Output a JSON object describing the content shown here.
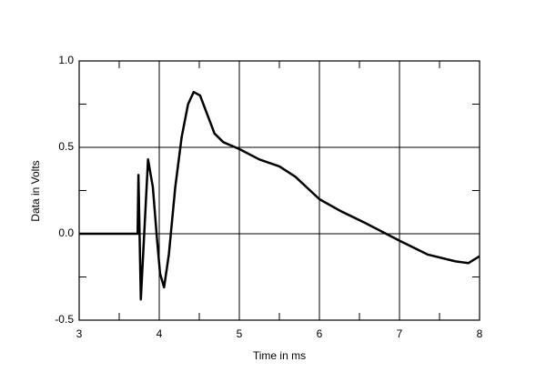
{
  "chart_data": {
    "type": "line",
    "x_label": "Time in ms",
    "y_label": "Data in Volts",
    "x": [
      3.0,
      3.73,
      3.74,
      3.77,
      3.81,
      3.86,
      3.92,
      3.97,
      4.01,
      4.06,
      4.12,
      4.2,
      4.28,
      4.36,
      4.43,
      4.51,
      4.6,
      4.69,
      4.8,
      5.0,
      5.25,
      5.5,
      5.7,
      6.0,
      6.27,
      6.56,
      7.0,
      7.35,
      7.7,
      7.86,
      8.0
    ],
    "values": [
      0.0,
      0.0,
      0.34,
      -0.38,
      -0.02,
      0.43,
      0.27,
      -0.02,
      -0.23,
      -0.31,
      -0.12,
      0.27,
      0.56,
      0.75,
      0.82,
      0.8,
      0.69,
      0.58,
      0.53,
      0.49,
      0.43,
      0.39,
      0.33,
      0.2,
      0.13,
      0.065,
      -0.04,
      -0.12,
      -0.16,
      -0.17,
      -0.13
    ],
    "color": "#000000",
    "xlim": [
      3,
      8
    ],
    "xticks": [
      3,
      4,
      5,
      6,
      7,
      8
    ],
    "xminorticks": [
      3.5,
      4.5,
      5.5,
      6.5,
      7.5
    ],
    "ylim": [
      -0.5,
      1.0
    ],
    "yticks": [
      {
        "value": -0.5,
        "label": "-0.5"
      },
      {
        "value": 0,
        "label": "0.0"
      },
      {
        "value": 0.5,
        "label": "0.5"
      },
      {
        "value": 1.0,
        "label": "1.0"
      }
    ],
    "yminorticks": [
      -0.25,
      0.25,
      0.75
    ],
    "grid": true
  }
}
